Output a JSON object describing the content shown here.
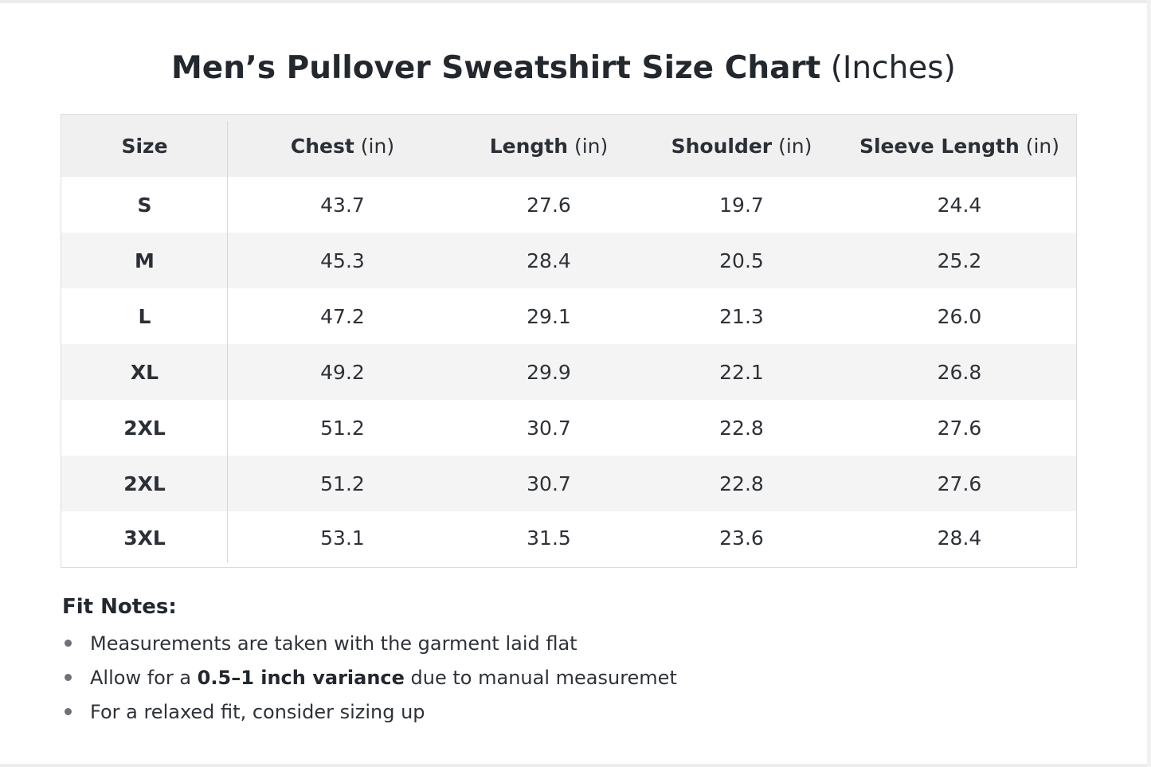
{
  "title": {
    "main": "Men’s Pullover Sweatshirt Size Chart",
    "unit": "(Inches)"
  },
  "table": {
    "headers": [
      {
        "name": "Size",
        "unit": ""
      },
      {
        "name": "Chest",
        "unit": "(in)"
      },
      {
        "name": "Length",
        "unit": "(in)"
      },
      {
        "name": "Shoulder",
        "unit": "(in)"
      },
      {
        "name": "Sleeve Length",
        "unit": "(in)"
      }
    ],
    "rows": [
      [
        "S",
        "43.7",
        "27.6",
        "19.7",
        "24.4"
      ],
      [
        "M",
        "45.3",
        "28.4",
        "20.5",
        "25.2"
      ],
      [
        "L",
        "47.2",
        "29.1",
        "21.3",
        "26.0"
      ],
      [
        "XL",
        "49.2",
        "29.9",
        "22.1",
        "26.8"
      ],
      [
        "2XL",
        "51.2",
        "30.7",
        "22.8",
        "27.6"
      ],
      [
        "2XL",
        "51.2",
        "30.7",
        "22.8",
        "27.6"
      ],
      [
        "3XL",
        "53.1",
        "31.5",
        "23.6",
        "28.4"
      ]
    ]
  },
  "fit_notes": {
    "title": "Fit Notes:",
    "items": [
      {
        "before": "Measurements are taken with the garment laid flat",
        "bold": "",
        "after": ""
      },
      {
        "before": "Allow for a ",
        "bold": "0.5–1 inch variance",
        "after": " due to manual measuremet"
      },
      {
        "before": "For a relaxed fit, consider sizing up",
        "bold": "",
        "after": ""
      }
    ]
  },
  "colors": {
    "header_bg": "#f0f0f0",
    "stripe_bg": "#f4f4f4",
    "text": "#2b2f36",
    "border": "#dcdcdc"
  }
}
